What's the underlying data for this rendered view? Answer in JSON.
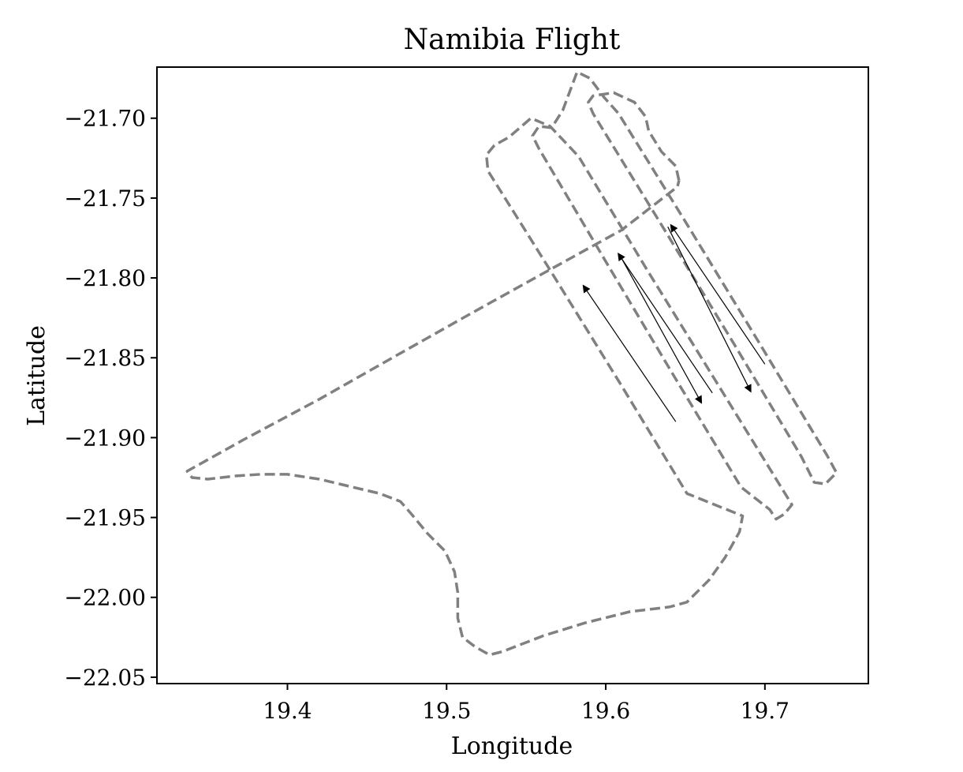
{
  "chart_data": {
    "type": "line",
    "title": "Namibia Flight",
    "xlabel": "Longitude",
    "ylabel": "Latitude",
    "xlim": [
      19.318,
      19.765
    ],
    "ylim": [
      -22.054,
      -21.668
    ],
    "x_ticks": [
      19.4,
      19.5,
      19.6,
      19.7
    ],
    "x_tick_labels": [
      "19.4",
      "19.5",
      "19.6",
      "19.7"
    ],
    "y_ticks": [
      -21.7,
      -21.75,
      -21.8,
      -21.85,
      -21.9,
      -21.95,
      -22.0,
      -22.05
    ],
    "y_tick_labels": [
      "−21.70",
      "−21.75",
      "−21.80",
      "−21.85",
      "−21.90",
      "−21.95",
      "−22.00",
      "−22.05"
    ],
    "grid": false,
    "series": [
      {
        "line_style": "dashed",
        "color": "#808080",
        "points": [
          [
            19.646,
            -21.739
          ],
          [
            19.644,
            -21.73
          ],
          [
            19.635,
            -21.721
          ],
          [
            19.627,
            -21.708
          ],
          [
            19.625,
            -21.699
          ],
          [
            19.618,
            -21.69
          ],
          [
            19.605,
            -21.684
          ],
          [
            19.592,
            -21.686
          ],
          [
            19.589,
            -21.69
          ],
          [
            19.592,
            -21.697
          ],
          [
            19.637,
            -21.77
          ],
          [
            19.681,
            -21.842
          ],
          [
            19.723,
            -21.912
          ],
          [
            19.731,
            -21.928
          ],
          [
            19.738,
            -21.929
          ],
          [
            19.745,
            -21.922
          ],
          [
            19.739,
            -21.911
          ],
          [
            19.696,
            -21.84
          ],
          [
            19.652,
            -21.768
          ],
          [
            19.608,
            -21.697
          ],
          [
            19.599,
            -21.687
          ],
          [
            19.59,
            -21.675
          ],
          [
            19.582,
            -21.671
          ],
          [
            19.573,
            -21.695
          ],
          [
            19.566,
            -21.706
          ],
          [
            19.558,
            -21.705
          ],
          [
            19.554,
            -21.711
          ],
          [
            19.558,
            -21.719
          ],
          [
            19.599,
            -21.788
          ],
          [
            19.642,
            -21.86
          ],
          [
            19.685,
            -21.931
          ],
          [
            19.703,
            -21.945
          ],
          [
            19.707,
            -21.951
          ],
          [
            19.712,
            -21.948
          ],
          [
            19.717,
            -21.942
          ],
          [
            19.67,
            -21.866
          ],
          [
            19.626,
            -21.795
          ],
          [
            19.583,
            -21.724
          ],
          [
            19.565,
            -21.705
          ],
          [
            19.553,
            -21.7
          ],
          [
            19.539,
            -21.712
          ],
          [
            19.53,
            -21.717
          ],
          [
            19.525,
            -21.723
          ],
          [
            19.526,
            -21.733
          ],
          [
            19.565,
            -21.795
          ],
          [
            19.609,
            -21.866
          ],
          [
            19.651,
            -21.935
          ],
          [
            19.686,
            -21.949
          ],
          [
            19.684,
            -21.959
          ],
          [
            19.675,
            -21.975
          ],
          [
            19.665,
            -21.989
          ],
          [
            19.651,
            -22.003
          ],
          [
            19.64,
            -22.006
          ],
          [
            19.615,
            -22.009
          ],
          [
            19.587,
            -22.016
          ],
          [
            19.561,
            -22.024
          ],
          [
            19.535,
            -22.034
          ],
          [
            19.527,
            -22.036
          ],
          [
            19.518,
            -22.031
          ],
          [
            19.51,
            -22.025
          ],
          [
            19.507,
            -22.013
          ],
          [
            19.507,
            -21.997
          ],
          [
            19.505,
            -21.984
          ],
          [
            19.499,
            -21.971
          ],
          [
            19.488,
            -21.96
          ],
          [
            19.478,
            -21.948
          ],
          [
            19.471,
            -21.94
          ],
          [
            19.458,
            -21.935
          ],
          [
            19.441,
            -21.931
          ],
          [
            19.42,
            -21.926
          ],
          [
            19.4,
            -21.923
          ],
          [
            19.383,
            -21.923
          ],
          [
            19.367,
            -21.924
          ],
          [
            19.35,
            -21.926
          ],
          [
            19.34,
            -21.925
          ],
          [
            19.337,
            -21.921
          ],
          [
            19.373,
            -21.901
          ],
          [
            19.42,
            -21.876
          ],
          [
            19.466,
            -21.85
          ],
          [
            19.514,
            -21.823
          ],
          [
            19.561,
            -21.797
          ],
          [
            19.61,
            -21.77
          ],
          [
            19.645,
            -21.743
          ],
          [
            19.646,
            -21.739
          ]
        ]
      }
    ],
    "arrows": [
      {
        "from": [
          19.644,
          -21.89
        ],
        "to": [
          19.586,
          -21.805
        ]
      },
      {
        "from": [
          19.609,
          -21.786
        ],
        "to": [
          19.66,
          -21.878
        ]
      },
      {
        "from": [
          19.667,
          -21.872
        ],
        "to": [
          19.608,
          -21.785
        ]
      },
      {
        "from": [
          19.639,
          -21.768
        ],
        "to": [
          19.691,
          -21.871
        ]
      },
      {
        "from": [
          19.7,
          -21.854
        ],
        "to": [
          19.641,
          -21.767
        ]
      }
    ]
  }
}
